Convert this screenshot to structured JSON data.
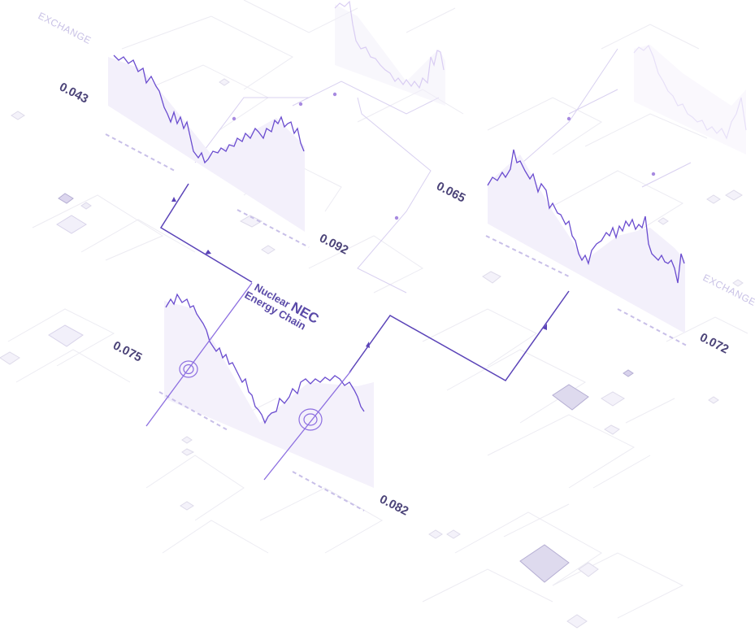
{
  "brand": {
    "line1_a": "Nuclear ",
    "line1_b": "NEC",
    "line2": "Energy Chain"
  },
  "labels": {
    "exchange_top_left": "EXCHANGE",
    "exchange_right": "EXCHANGE",
    "v1": "0.043",
    "v2": "0.092",
    "v3": "0.065",
    "v4": "0.075",
    "v5": "0.082",
    "v6": "0.072"
  },
  "colors": {
    "accent": "#6a4ccf",
    "accent_light": "#b9a7ee",
    "text": "#4b4378",
    "grid": "#ececf3",
    "fill": "#f1edfb"
  }
}
